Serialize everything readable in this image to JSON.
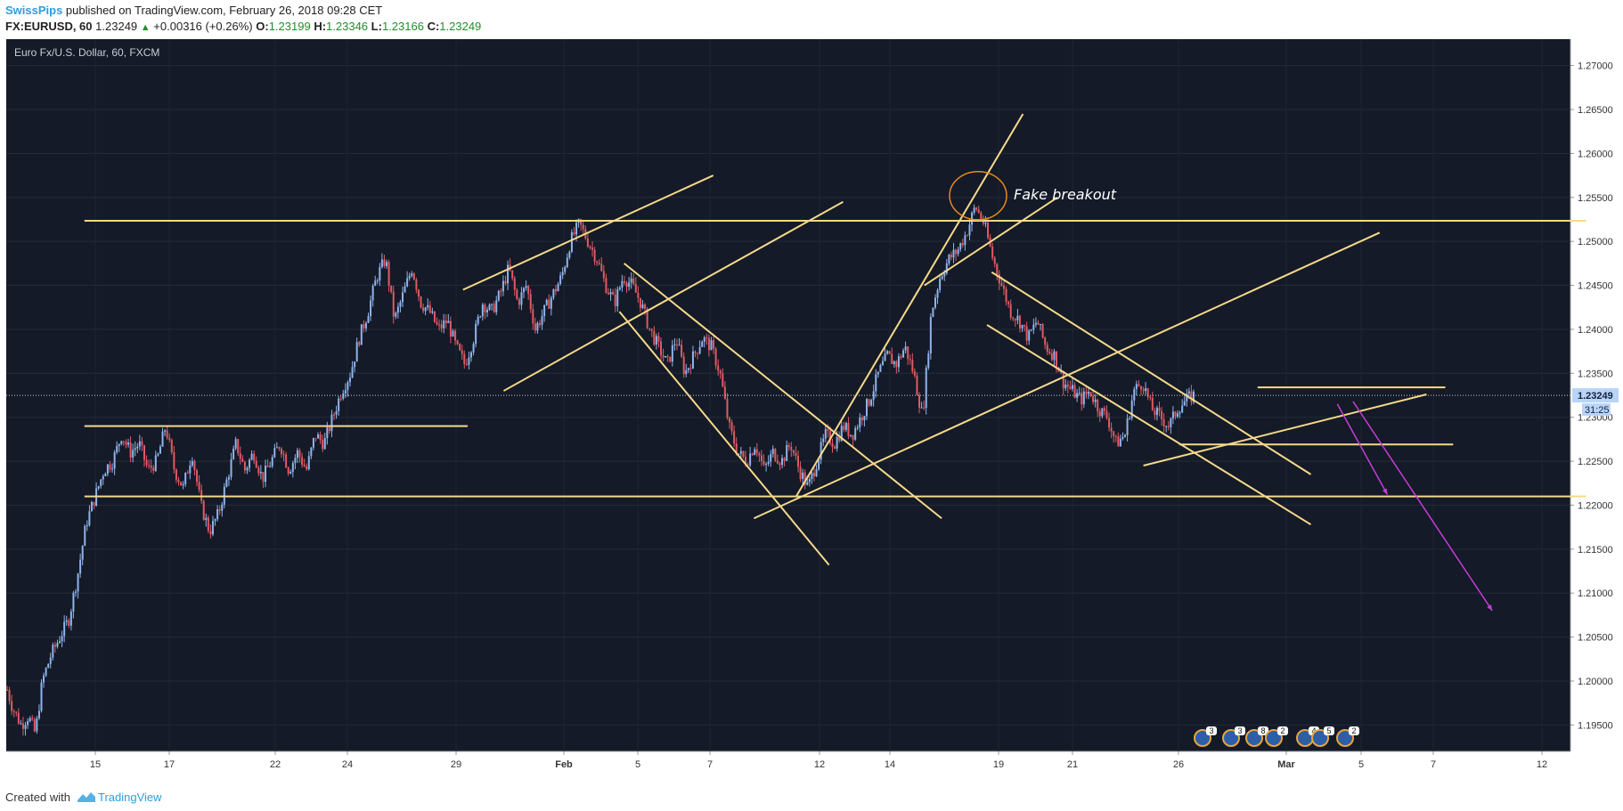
{
  "header": {
    "author": "SwissPips",
    "published": " published on TradingView.com, February 26, 2018 09:28 CET",
    "symbol": "FX:EURUSD, 60",
    "last": "1.23249",
    "change": "+0.00316 (+0.26%)",
    "o_label": "O:",
    "o": "1.23199",
    "h_label": "H:",
    "h": "1.23346",
    "l_label": "L:",
    "l": "1.23166",
    "c_label": "C:",
    "c": "1.23249"
  },
  "footer": {
    "created": "Created with",
    "brand": "TradingView"
  },
  "chart_data": {
    "type": "candlestick",
    "title": "Euro Fx/U.S. Dollar, 60, FXCM",
    "ylim": [
      1.192,
      1.273
    ],
    "y_ticks": [
      "1.19500",
      "1.20000",
      "1.20500",
      "1.21000",
      "1.21500",
      "1.22000",
      "1.22500",
      "1.23000",
      "1.23500",
      "1.24000",
      "1.24500",
      "1.25000",
      "1.25500",
      "1.26000",
      "1.26500",
      "1.27000"
    ],
    "x_labels": [
      "15",
      "17",
      "22",
      "24",
      "29",
      "Feb",
      "5",
      "7",
      "12",
      "14",
      "19",
      "21",
      "26",
      "Mar",
      "5",
      "7",
      "12"
    ],
    "last_price": "1.23249",
    "countdown": "31:25",
    "annotation": "Fake breakout",
    "price_path": [
      [
        0,
        1.199
      ],
      [
        0.3,
        1.197
      ],
      [
        0.8,
        1.195
      ],
      [
        1.2,
        1.196
      ],
      [
        1.6,
        1.194
      ],
      [
        2.0,
        1.2
      ],
      [
        2.5,
        1.203
      ],
      [
        3.0,
        1.205
      ],
      [
        3.5,
        1.207
      ],
      [
        4.0,
        1.212
      ],
      [
        4.5,
        1.218
      ],
      [
        5.0,
        1.221
      ],
      [
        5.5,
        1.224
      ],
      [
        6.0,
        1.225
      ],
      [
        6.5,
        1.228
      ],
      [
        7.0,
        1.226
      ],
      [
        7.5,
        1.227
      ],
      [
        8.0,
        1.224
      ],
      [
        8.5,
        1.225
      ],
      [
        9.0,
        1.229
      ],
      [
        9.5,
        1.224
      ],
      [
        10.0,
        1.222
      ],
      [
        10.5,
        1.226
      ],
      [
        11.0,
        1.22
      ],
      [
        11.5,
        1.217
      ],
      [
        12.0,
        1.219
      ],
      [
        12.5,
        1.223
      ],
      [
        13.0,
        1.227
      ],
      [
        13.5,
        1.224
      ],
      [
        14.0,
        1.226
      ],
      [
        14.5,
        1.223
      ],
      [
        15.0,
        1.225
      ],
      [
        15.5,
        1.227
      ],
      [
        16.0,
        1.224
      ],
      [
        16.5,
        1.226
      ],
      [
        17.0,
        1.224
      ],
      [
        17.5,
        1.228
      ],
      [
        18.0,
        1.227
      ],
      [
        18.5,
        1.23
      ],
      [
        19.0,
        1.233
      ],
      [
        19.5,
        1.235
      ],
      [
        20.0,
        1.239
      ],
      [
        20.5,
        1.242
      ],
      [
        21.0,
        1.246
      ],
      [
        21.5,
        1.248
      ],
      [
        22.0,
        1.241
      ],
      [
        22.5,
        1.244
      ],
      [
        23.0,
        1.247
      ],
      [
        23.5,
        1.243
      ],
      [
        24.0,
        1.242
      ],
      [
        24.5,
        1.24
      ],
      [
        25.0,
        1.241
      ],
      [
        25.5,
        1.238
      ],
      [
        26.0,
        1.236
      ],
      [
        26.5,
        1.239
      ],
      [
        27.0,
        1.243
      ],
      [
        27.5,
        1.242
      ],
      [
        28.0,
        1.244
      ],
      [
        28.5,
        1.247
      ],
      [
        29.0,
        1.243
      ],
      [
        29.5,
        1.245
      ],
      [
        30.0,
        1.24
      ],
      [
        30.5,
        1.242
      ],
      [
        31.0,
        1.244
      ],
      [
        31.5,
        1.246
      ],
      [
        32.0,
        1.25
      ],
      [
        32.5,
        1.252
      ],
      [
        33.0,
        1.25
      ],
      [
        33.5,
        1.248
      ],
      [
        34.0,
        1.245
      ],
      [
        34.5,
        1.243
      ],
      [
        35.0,
        1.246
      ],
      [
        35.5,
        1.245
      ],
      [
        36.0,
        1.243
      ],
      [
        36.5,
        1.24
      ],
      [
        37.0,
        1.238
      ],
      [
        37.5,
        1.236
      ],
      [
        38.0,
        1.239
      ],
      [
        38.5,
        1.235
      ],
      [
        39.0,
        1.237
      ],
      [
        39.5,
        1.239
      ],
      [
        40.0,
        1.238
      ],
      [
        40.5,
        1.235
      ],
      [
        41.0,
        1.229
      ],
      [
        41.5,
        1.226
      ],
      [
        42.0,
        1.225
      ],
      [
        42.5,
        1.227
      ],
      [
        43.0,
        1.224
      ],
      [
        43.5,
        1.226
      ],
      [
        44.0,
        1.225
      ],
      [
        44.5,
        1.227
      ],
      [
        45.0,
        1.224
      ],
      [
        45.5,
        1.222
      ],
      [
        46.0,
        1.225
      ],
      [
        46.5,
        1.228
      ],
      [
        47.0,
        1.227
      ],
      [
        47.5,
        1.229
      ],
      [
        48.0,
        1.228
      ],
      [
        48.5,
        1.23
      ],
      [
        49.0,
        1.232
      ],
      [
        49.5,
        1.235
      ],
      [
        50.0,
        1.237
      ],
      [
        50.5,
        1.236
      ],
      [
        51.0,
        1.238
      ],
      [
        51.5,
        1.235
      ],
      [
        52.0,
        1.23
      ],
      [
        52.5,
        1.242
      ],
      [
        53.0,
        1.246
      ],
      [
        53.5,
        1.248
      ],
      [
        54.0,
        1.249
      ],
      [
        54.5,
        1.251
      ],
      [
        55.0,
        1.254
      ],
      [
        55.5,
        1.252
      ],
      [
        56.0,
        1.248
      ],
      [
        56.5,
        1.245
      ],
      [
        57.0,
        1.242
      ],
      [
        57.5,
        1.241
      ],
      [
        58.0,
        1.239
      ],
      [
        58.5,
        1.241
      ],
      [
        59.0,
        1.238
      ],
      [
        59.5,
        1.237
      ],
      [
        60.0,
        1.234
      ],
      [
        60.5,
        1.233
      ],
      [
        61.0,
        1.232
      ],
      [
        61.5,
        1.233
      ],
      [
        62.0,
        1.231
      ],
      [
        62.5,
        1.23
      ],
      [
        63.0,
        1.227
      ],
      [
        63.5,
        1.228
      ],
      [
        64.0,
        1.233
      ],
      [
        64.5,
        1.234
      ],
      [
        65.0,
        1.231
      ],
      [
        65.5,
        1.23
      ],
      [
        66.0,
        1.229
      ],
      [
        66.5,
        1.231
      ],
      [
        67.0,
        1.232
      ],
      [
        67.4,
        1.2325
      ]
    ],
    "drawings": [
      {
        "kind": "hline",
        "y": 1.25235,
        "x0": 0.05,
        "x1": 1.01
      },
      {
        "kind": "hline",
        "y": 1.229,
        "x0": 0.05,
        "x1": 0.295
      },
      {
        "kind": "hline",
        "y": 1.221,
        "x0": 0.05,
        "x1": 1.01
      },
      {
        "kind": "hline",
        "y": 1.2334,
        "x0": 0.8,
        "x1": 0.92
      },
      {
        "kind": "hline",
        "y": 1.2269,
        "x0": 0.75,
        "x1": 0.925
      },
      {
        "kind": "line",
        "x0": 0.318,
        "y0": 1.233,
        "x1": 0.535,
        "y1": 1.2545
      },
      {
        "kind": "line",
        "x0": 0.292,
        "y0": 1.2445,
        "x1": 0.452,
        "y1": 1.2575
      },
      {
        "kind": "line",
        "x0": 0.395,
        "y0": 1.2475,
        "x1": 0.598,
        "y1": 1.2185
      },
      {
        "kind": "line",
        "x0": 0.392,
        "y0": 1.242,
        "x1": 0.526,
        "y1": 1.2132
      },
      {
        "kind": "line",
        "x0": 0.478,
        "y0": 1.2185,
        "x1": 0.878,
        "y1": 1.251
      },
      {
        "kind": "line",
        "x0": 0.505,
        "y0": 1.221,
        "x1": 0.65,
        "y1": 1.2645
      },
      {
        "kind": "line",
        "x0": 0.587,
        "y0": 1.245,
        "x1": 0.672,
        "y1": 1.255
      },
      {
        "kind": "line",
        "x0": 0.63,
        "y0": 1.2465,
        "x1": 0.834,
        "y1": 1.2235
      },
      {
        "kind": "line",
        "x0": 0.627,
        "y0": 1.2405,
        "x1": 0.834,
        "y1": 1.2178
      },
      {
        "kind": "line",
        "x0": 0.727,
        "y0": 1.2245,
        "x1": 0.908,
        "y1": 1.2326
      }
    ],
    "arrows": [
      {
        "x0": 0.851,
        "y0": 1.2315,
        "x1": 0.883,
        "y1": 1.2212
      },
      {
        "x0": 0.861,
        "y0": 1.2318,
        "x1": 0.95,
        "y1": 1.208
      }
    ]
  }
}
